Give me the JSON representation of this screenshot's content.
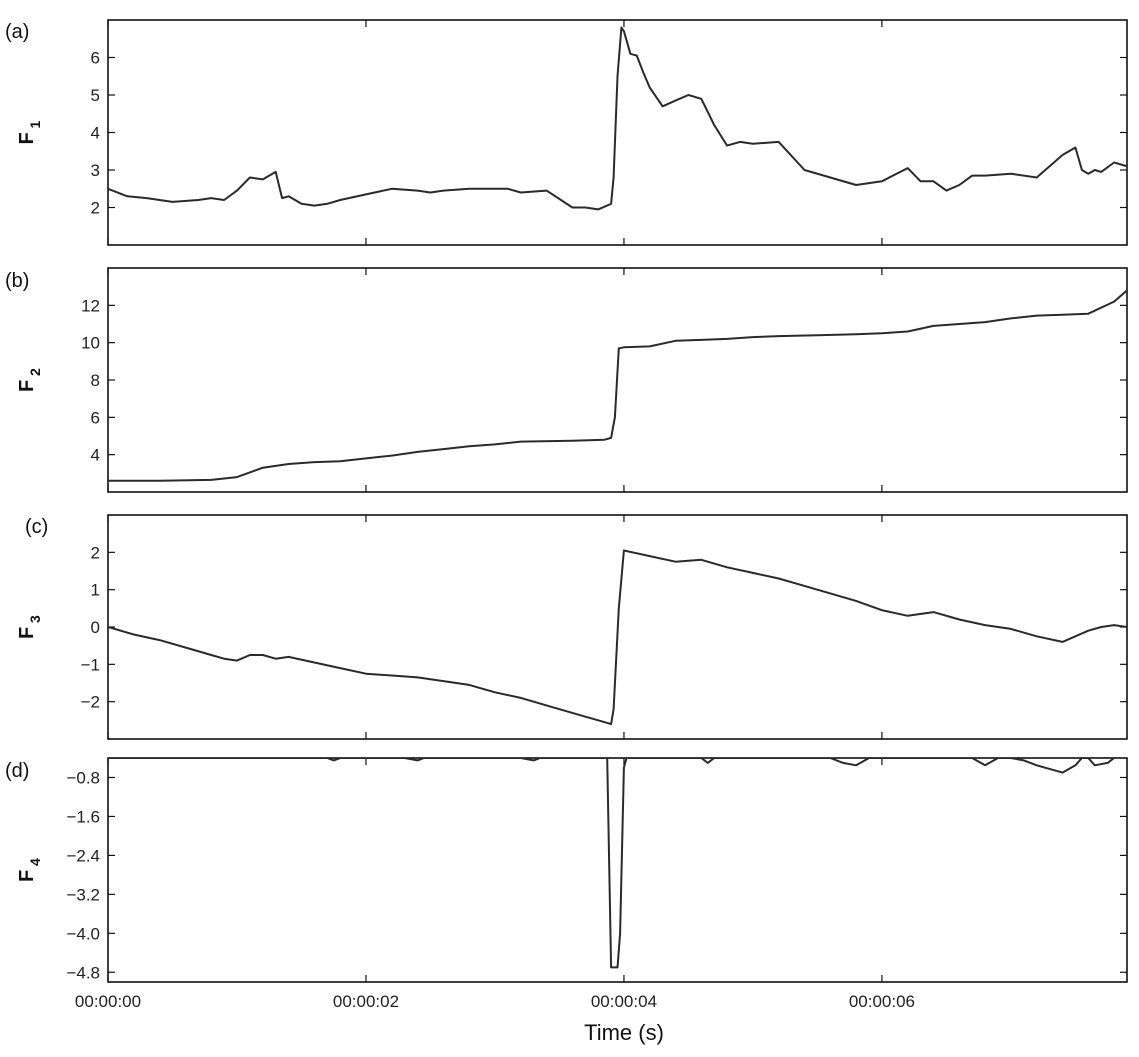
{
  "figure": {
    "xlabel": "Time (s)",
    "x_tick_labels": [
      "00:00:00",
      "00:00:02",
      "00:00:04",
      "00:00:06"
    ],
    "x_ticks": [
      0,
      2,
      4,
      6
    ],
    "xlim": [
      0,
      7.9
    ]
  },
  "chart_data": [
    {
      "id": "a",
      "type": "line",
      "panel_label": "(a)",
      "ylabel": "F",
      "ylabel_sub": "1",
      "ylim": [
        1,
        7
      ],
      "y_ticks": [
        2,
        3,
        4,
        5,
        6
      ],
      "y_tick_labels": [
        "2",
        "3",
        "4",
        "5",
        "6"
      ],
      "x": [
        0,
        0.15,
        0.3,
        0.5,
        0.7,
        0.8,
        0.9,
        1.0,
        1.1,
        1.2,
        1.3,
        1.35,
        1.4,
        1.5,
        1.6,
        1.7,
        1.8,
        2.0,
        2.2,
        2.4,
        2.5,
        2.6,
        2.8,
        3.0,
        3.1,
        3.2,
        3.4,
        3.6,
        3.7,
        3.8,
        3.9,
        3.92,
        3.95,
        3.98,
        4.0,
        4.05,
        4.1,
        4.15,
        4.2,
        4.3,
        4.4,
        4.5,
        4.6,
        4.7,
        4.8,
        4.9,
        5.0,
        5.2,
        5.4,
        5.6,
        5.8,
        6.0,
        6.2,
        6.3,
        6.4,
        6.5,
        6.6,
        6.7,
        6.8,
        7.0,
        7.2,
        7.4,
        7.5,
        7.55,
        7.6,
        7.65,
        7.7,
        7.8,
        7.9
      ],
      "values": [
        2.5,
        2.3,
        2.25,
        2.15,
        2.2,
        2.25,
        2.2,
        2.45,
        2.8,
        2.75,
        2.95,
        2.25,
        2.3,
        2.1,
        2.05,
        2.1,
        2.2,
        2.35,
        2.5,
        2.45,
        2.4,
        2.45,
        2.5,
        2.5,
        2.5,
        2.4,
        2.45,
        2.0,
        2.0,
        1.95,
        2.1,
        2.8,
        5.5,
        6.8,
        6.7,
        6.1,
        6.05,
        5.6,
        5.2,
        4.7,
        4.85,
        5.0,
        4.9,
        4.2,
        3.65,
        3.75,
        3.7,
        3.75,
        3.0,
        2.8,
        2.6,
        2.7,
        3.05,
        2.7,
        2.7,
        2.45,
        2.6,
        2.85,
        2.85,
        2.9,
        2.8,
        3.4,
        3.6,
        3.0,
        2.9,
        3.0,
        2.95,
        3.2,
        3.1
      ]
    },
    {
      "id": "b",
      "type": "line",
      "panel_label": "(b)",
      "ylabel": "F",
      "ylabel_sub": "2",
      "ylim": [
        2,
        14
      ],
      "y_ticks": [
        4,
        6,
        8,
        10,
        12
      ],
      "y_tick_labels": [
        "4",
        "6",
        "8",
        "10",
        "12"
      ],
      "x": [
        0,
        0.4,
        0.8,
        1.0,
        1.2,
        1.4,
        1.6,
        1.8,
        2.0,
        2.2,
        2.4,
        2.6,
        2.8,
        3.0,
        3.2,
        3.6,
        3.85,
        3.9,
        3.93,
        3.96,
        4.0,
        4.2,
        4.4,
        4.6,
        4.8,
        5.0,
        5.2,
        5.5,
        5.8,
        6.0,
        6.2,
        6.4,
        6.6,
        6.8,
        7.0,
        7.2,
        7.4,
        7.6,
        7.8,
        7.9
      ],
      "values": [
        2.6,
        2.6,
        2.65,
        2.8,
        3.3,
        3.5,
        3.6,
        3.65,
        3.8,
        3.95,
        4.15,
        4.3,
        4.45,
        4.55,
        4.7,
        4.75,
        4.8,
        4.9,
        6.0,
        9.7,
        9.75,
        9.8,
        10.1,
        10.15,
        10.2,
        10.3,
        10.35,
        10.4,
        10.45,
        10.5,
        10.6,
        10.9,
        11.0,
        11.1,
        11.3,
        11.45,
        11.5,
        11.55,
        12.2,
        12.8
      ]
    },
    {
      "id": "c",
      "type": "line",
      "panel_label": "(c)",
      "ylabel": "F",
      "ylabel_sub": "3",
      "ylim": [
        -3,
        3
      ],
      "y_ticks": [
        -2,
        -1,
        0,
        1,
        2
      ],
      "y_tick_labels": [
        "−2",
        "−1",
        "0",
        "1",
        "2"
      ],
      "x": [
        0,
        0.2,
        0.4,
        0.6,
        0.8,
        0.9,
        1.0,
        1.1,
        1.2,
        1.3,
        1.4,
        1.6,
        1.8,
        2.0,
        2.2,
        2.4,
        2.6,
        2.8,
        3.0,
        3.2,
        3.4,
        3.6,
        3.8,
        3.9,
        3.92,
        3.96,
        4.0,
        4.2,
        4.4,
        4.6,
        4.8,
        5.0,
        5.2,
        5.4,
        5.6,
        5.8,
        6.0,
        6.2,
        6.4,
        6.6,
        6.8,
        7.0,
        7.2,
        7.4,
        7.6,
        7.7,
        7.8,
        7.9
      ],
      "values": [
        0.0,
        -0.2,
        -0.35,
        -0.55,
        -0.75,
        -0.85,
        -0.9,
        -0.75,
        -0.75,
        -0.85,
        -0.8,
        -0.95,
        -1.1,
        -1.25,
        -1.3,
        -1.35,
        -1.45,
        -1.55,
        -1.75,
        -1.9,
        -2.1,
        -2.3,
        -2.5,
        -2.6,
        -2.2,
        0.5,
        2.05,
        1.9,
        1.75,
        1.8,
        1.6,
        1.45,
        1.3,
        1.1,
        0.9,
        0.7,
        0.45,
        0.3,
        0.4,
        0.2,
        0.05,
        -0.05,
        -0.25,
        -0.4,
        -0.1,
        0.0,
        0.05,
        0.0
      ]
    },
    {
      "id": "d",
      "type": "line",
      "panel_label": "(d)",
      "ylabel": "F",
      "ylabel_sub": "4",
      "ylim": [
        -5.0,
        -0.4
      ],
      "y_ticks": [
        -0.8,
        -1.6,
        -2.4,
        -3.2,
        -4.0,
        -4.8
      ],
      "y_tick_labels": [
        "−0.8",
        "−1.6",
        "−2.4",
        "−3.2",
        "−4.0",
        "−4.8"
      ],
      "x": [
        0.0,
        0.5,
        1.5,
        1.7,
        1.75,
        1.8,
        2.0,
        2.3,
        2.4,
        2.45,
        2.5,
        2.7,
        3.0,
        3.2,
        3.3,
        3.35,
        3.4,
        3.6,
        3.8,
        3.87,
        3.9,
        3.95,
        3.97,
        4.0,
        4.02,
        4.3,
        4.6,
        4.65,
        4.7,
        4.9,
        5.4,
        5.6,
        5.7,
        5.8,
        5.9,
        6.2,
        6.3,
        6.4,
        6.7,
        6.8,
        6.9,
        7.0,
        7.1,
        7.2,
        7.4,
        7.5,
        7.55,
        7.6,
        7.65,
        7.75,
        7.8
      ],
      "values": [
        -0.4,
        -0.4,
        -0.4,
        -0.4,
        -0.45,
        -0.4,
        -0.4,
        -0.4,
        -0.45,
        -0.4,
        -0.4,
        -0.4,
        -0.4,
        -0.4,
        -0.45,
        -0.4,
        -0.4,
        -0.4,
        -0.4,
        -0.4,
        -4.7,
        -4.7,
        -4.0,
        -0.6,
        -0.4,
        -0.4,
        -0.4,
        -0.5,
        -0.4,
        -0.4,
        -0.4,
        -0.4,
        -0.5,
        -0.55,
        -0.4,
        -0.4,
        -0.4,
        -0.4,
        -0.4,
        -0.55,
        -0.4,
        -0.4,
        -0.45,
        -0.55,
        -0.7,
        -0.55,
        -0.4,
        -0.4,
        -0.55,
        -0.5,
        -0.4
      ]
    }
  ]
}
